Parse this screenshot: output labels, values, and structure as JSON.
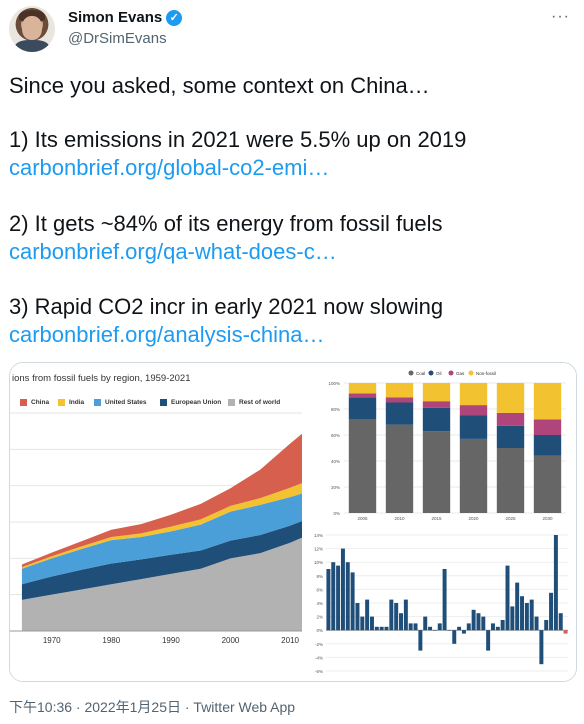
{
  "author": {
    "name": "Simon Evans",
    "handle": "@DrSimEvans",
    "verified": true
  },
  "tweet_lines": [
    {
      "text": "Since you asked, some context on China…",
      "is_link": false
    },
    {
      "text": "1) Its emissions in 2021 were 5.5% up on 2019",
      "is_link": false
    },
    {
      "text": "carbonbrief.org/global-co2-emi…",
      "is_link": true
    },
    {
      "text": "2) It gets ~84% of its energy from fossil fuels",
      "is_link": false
    },
    {
      "text": "carbonbrief.org/qa-what-does-c…",
      "is_link": true
    },
    {
      "text": "3) Rapid CO2 incr in early 2021 now slowing",
      "is_link": false
    },
    {
      "text": "carbonbrief.org/analysis-china…",
      "is_link": true
    }
  ],
  "timestamp": "下午10:36 · 2022年1月25日 · Twitter Web App",
  "icons": {
    "more": "more-icon",
    "verified": "verified-badge-icon"
  },
  "chart_data": [
    {
      "type": "area",
      "title": "ions from fossil fuels by region, 1959-2021",
      "x": [
        1965,
        1970,
        1975,
        1980,
        1985,
        1990,
        1995,
        2000,
        2005,
        2010,
        2012
      ],
      "xticks": [
        "1970",
        "1980",
        "1990",
        "2000",
        "2010"
      ],
      "series": [
        {
          "name": "Rest of world",
          "color": "#b2b2b2",
          "values": [
            6,
            7,
            8,
            9,
            10,
            11,
            12,
            14,
            15,
            17,
            18
          ]
        },
        {
          "name": "European Union",
          "color": "#1f4e79",
          "values": [
            3,
            3.5,
            3.8,
            4,
            3.8,
            3.7,
            3.5,
            3.4,
            3.5,
            3.3,
            3.2
          ]
        },
        {
          "name": "United States",
          "color": "#4a9fd8",
          "values": [
            3,
            3.5,
            4,
            4.5,
            4.3,
            4.5,
            5,
            5.6,
            5.8,
            5.5,
            5.3
          ]
        },
        {
          "name": "India",
          "color": "#f2c230",
          "values": [
            0.3,
            0.4,
            0.5,
            0.6,
            0.7,
            0.9,
            1,
            1.1,
            1.3,
            1.8,
            2
          ]
        },
        {
          "name": "China",
          "color": "#d6604d",
          "values": [
            0.5,
            0.7,
            1,
            1.4,
            1.8,
            2.3,
            3,
            3.4,
            5.5,
            8.5,
            9.5
          ]
        }
      ],
      "legend_position": "top"
    },
    {
      "type": "bar",
      "stacked": true,
      "title": "",
      "categories": [
        "2005",
        "2010",
        "2015",
        "2020",
        "2025",
        "2030"
      ],
      "series": [
        {
          "name": "Coal",
          "color": "#666666",
          "values": [
            72,
            68,
            63,
            57,
            50,
            44
          ]
        },
        {
          "name": "Oil",
          "color": "#1f4e79",
          "values": [
            17,
            17,
            18,
            18,
            17,
            16
          ]
        },
        {
          "name": "Gas",
          "color": "#b0457b",
          "values": [
            3,
            4,
            5,
            8,
            10,
            12
          ]
        },
        {
          "name": "Non-fossil",
          "color": "#f2c230",
          "values": [
            8,
            11,
            14,
            17,
            23,
            28
          ]
        }
      ],
      "yticks": [
        "0%",
        "20%",
        "40%",
        "60%",
        "80%",
        "100%"
      ],
      "legend_position": "top"
    },
    {
      "type": "bar",
      "title": "",
      "values": [
        9,
        10,
        9.5,
        12,
        10,
        8.5,
        4,
        2,
        4.5,
        2,
        0.5,
        0.5,
        0.5,
        4.5,
        4,
        2.5,
        4.5,
        1,
        1,
        -3,
        2,
        0.5,
        0,
        1,
        9,
        0,
        -2,
        0.5,
        -0.5,
        1,
        3,
        2.5,
        2,
        -3,
        1,
        0.5,
        1.5,
        9.5,
        3.5,
        7,
        5,
        4,
        4.5,
        2,
        -5,
        1.5,
        5.5,
        14,
        2.5,
        -0.5
      ],
      "yticks": [
        "-6%",
        "-4%",
        "-2%",
        "0%",
        "2%",
        "4%",
        "6%",
        "8%",
        "10%",
        "12%",
        "14%"
      ],
      "ylim": [
        -6,
        14
      ],
      "color": "#1f4e79",
      "negative_last_color": "#d6604d"
    }
  ]
}
